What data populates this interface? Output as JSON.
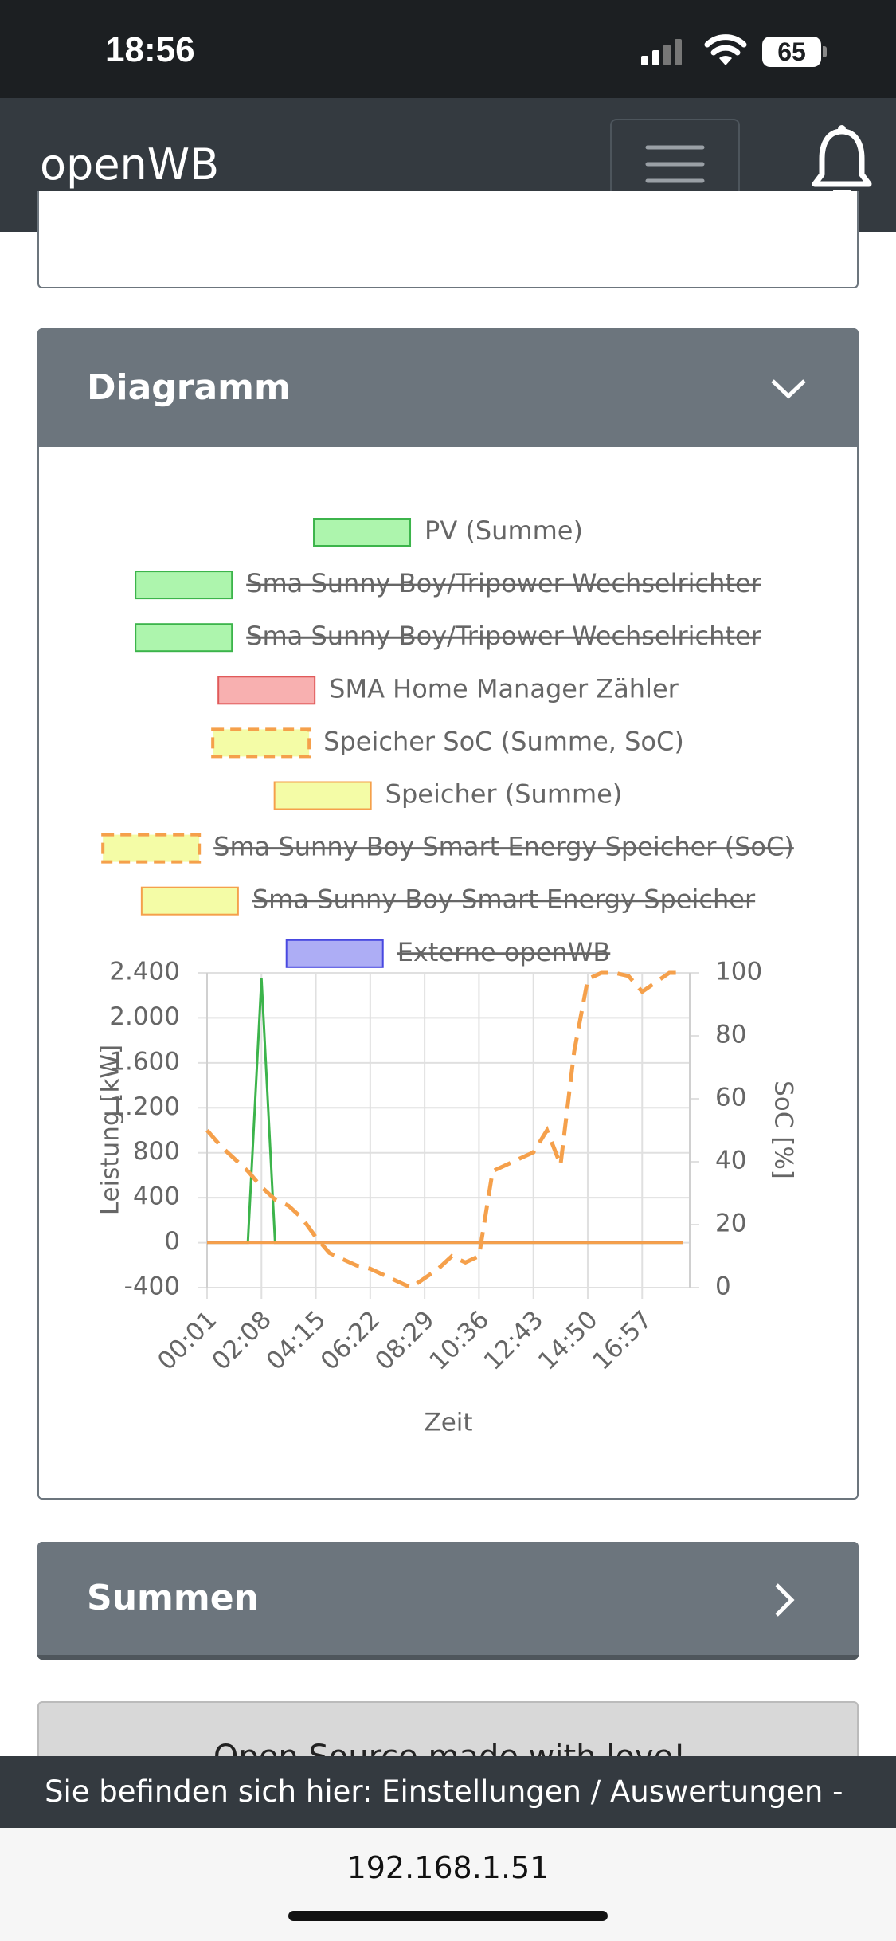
{
  "status_bar": {
    "time": "18:56",
    "battery": 65
  },
  "navbar": {
    "brand": "openWB"
  },
  "cards": [
    {
      "title": "Diagramm"
    },
    {
      "title": "Summen"
    },
    {
      "title": "Open Source made with love!"
    }
  ],
  "breadcrumb": "Sie befinden sich hier: Einstellungen / Auswertungen -",
  "url": "192.168.1.51",
  "chart_data": {
    "type": "line",
    "xlabel": "Zeit",
    "ylabel": "Leistung [kW]",
    "y2label": "SoC [%]",
    "categories": [
      "00:01",
      null,
      null,
      null,
      "02:08",
      null,
      null,
      null,
      "04:15",
      null,
      null,
      null,
      "06:22",
      null,
      null,
      null,
      "08:29",
      null,
      null,
      null,
      "10:36",
      null,
      null,
      null,
      "12:43",
      null,
      null,
      null,
      "14:50",
      null,
      null,
      null,
      "16:57",
      null,
      null,
      null
    ],
    "ylim": [
      -400,
      2400
    ],
    "yticks": [
      -400,
      0,
      400,
      800,
      {
        "value": 1200,
        "label": "1.200"
      },
      {
        "value": 1600,
        "label": "1.600"
      },
      {
        "value": 2000,
        "label": "2.000"
      },
      {
        "value": 2400,
        "label": "2.400"
      }
    ],
    "y2lim": [
      0,
      100
    ],
    "y2ticks": [
      0,
      20,
      40,
      60,
      80,
      100
    ],
    "grid": true,
    "series": [
      {
        "name": "PV (Summe)",
        "color": "#3cb44b",
        "fill": "#adf5ad",
        "dash": false,
        "hidden": false,
        "values": [
          0,
          0,
          0,
          0,
          2350,
          0,
          0,
          0,
          0,
          0,
          0,
          0,
          0,
          0,
          0,
          0,
          0,
          0,
          0,
          0,
          0,
          0,
          0,
          0,
          0,
          0,
          0,
          0,
          0,
          0,
          0,
          0,
          0,
          0,
          0,
          0
        ]
      },
      {
        "name": "Sma Sunny Boy/Tripower Wechselrichter",
        "color": "#3cb44b",
        "fill": "#adf5ad",
        "dash": false,
        "hidden": true
      },
      {
        "name": "Sma Sunny Boy/Tripower Wechselrichter",
        "color": "#3cb44b",
        "fill": "#adf5ad",
        "dash": false,
        "hidden": true
      },
      {
        "name": "SMA Home Manager Zähler",
        "color": "#e05a5a",
        "fill": "#f8b0b0",
        "dash": false,
        "hidden": false,
        "values": [
          0,
          0,
          0,
          0,
          0,
          0,
          0,
          0,
          0,
          0,
          0,
          0,
          0,
          0,
          0,
          0,
          0,
          0,
          0,
          0,
          0,
          0,
          0,
          0,
          0,
          0,
          0,
          0,
          0,
          0,
          0,
          0,
          0,
          0,
          0,
          0
        ]
      },
      {
        "name": "Speicher SoC (Summe, SoC)",
        "color": "#f5a04b",
        "fill": "#f4fca6",
        "dash": true,
        "hidden": false,
        "axis": "y2",
        "values": [
          50,
          45,
          41,
          37,
          32,
          28,
          26,
          22,
          16,
          11,
          9,
          7,
          6,
          4,
          2,
          0,
          3,
          6,
          10,
          8,
          10,
          37,
          39,
          41,
          43,
          50,
          39,
          75,
          98,
          100,
          100,
          99,
          94,
          97,
          100,
          100
        ]
      },
      {
        "name": "Speicher (Summe)",
        "color": "#f5a04b",
        "fill": "#f4fca6",
        "dash": false,
        "hidden": false,
        "values": [
          0,
          0,
          0,
          0,
          0,
          0,
          0,
          0,
          0,
          0,
          0,
          0,
          0,
          0,
          0,
          0,
          0,
          0,
          0,
          0,
          0,
          0,
          0,
          0,
          0,
          0,
          0,
          0,
          0,
          0,
          0,
          0,
          0,
          0,
          0,
          0
        ]
      },
      {
        "name": "Sma Sunny Boy Smart Energy Speicher (SoC)",
        "color": "#f5a04b",
        "fill": "#f4fca6",
        "dash": true,
        "hidden": true
      },
      {
        "name": "Sma Sunny Boy Smart Energy Speicher",
        "color": "#f5a04b",
        "fill": "#f4fca6",
        "dash": false,
        "hidden": true
      },
      {
        "name": "Externe openWB",
        "color": "#4848e0",
        "fill": "#adadf5",
        "dash": false,
        "hidden": true
      }
    ]
  }
}
